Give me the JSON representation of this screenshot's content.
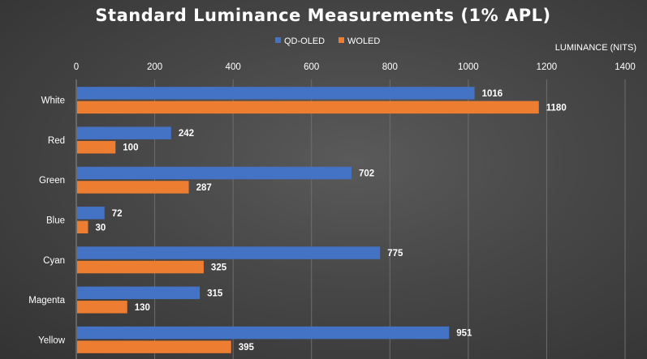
{
  "chart_data": {
    "type": "bar",
    "orientation": "horizontal",
    "title": "Standard Luminance Measurements (1% APL)",
    "xlabel": "LUMINANCE (NITS)",
    "ylabel": "",
    "xlim": [
      0,
      1400
    ],
    "x_ticks": [
      0,
      200,
      400,
      600,
      800,
      1000,
      1200,
      1400
    ],
    "x_tick_labels": [
      "0",
      "200",
      "400",
      "600",
      "800",
      "1000",
      "1200",
      "1400"
    ],
    "x_axis_position": "top",
    "grid": true,
    "legend_position": "top",
    "categories": [
      "White",
      "Red",
      "Green",
      "Blue",
      "Cyan",
      "Magenta",
      "Yellow"
    ],
    "series": [
      {
        "name": "QD-OLED",
        "color": "#4472c4",
        "values": [
          1016,
          242,
          702,
          72,
          775,
          315,
          951
        ]
      },
      {
        "name": "WOLED",
        "color": "#ed7d31",
        "values": [
          1180,
          100,
          287,
          30,
          325,
          130,
          395
        ]
      }
    ]
  }
}
